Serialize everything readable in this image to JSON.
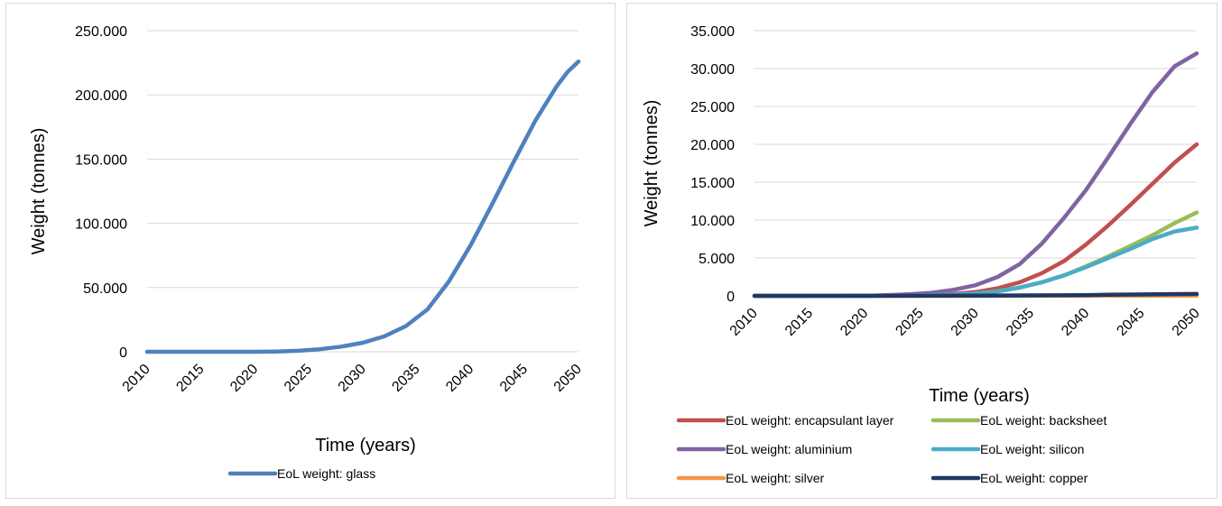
{
  "chart_data": [
    {
      "type": "line",
      "title": "",
      "xlabel": "Time (years)",
      "ylabel": "Weight (tonnes)",
      "ylim": [
        0,
        250000
      ],
      "xlim": [
        2010,
        2050
      ],
      "grid": "horizontal",
      "legend_position": "bottom",
      "y_ticks": [
        "0",
        "50.000",
        "100.000",
        "150.000",
        "200.000",
        "250.000"
      ],
      "x_ticks": [
        "2010",
        "2015",
        "2020",
        "2025",
        "2030",
        "2035",
        "2040",
        "2045",
        "2050"
      ],
      "series": [
        {
          "name": "EoL weight: glass",
          "color": "#4F81BD",
          "x": [
            2010,
            2015,
            2020,
            2022,
            2024,
            2026,
            2028,
            2030,
            2032,
            2034,
            2036,
            2038,
            2040,
            2042,
            2044,
            2046,
            2048,
            2049,
            2050
          ],
          "y": [
            0,
            0,
            0,
            200,
            800,
            2000,
            4000,
            7000,
            12000,
            20000,
            33000,
            55000,
            83000,
            115000,
            148000,
            180000,
            207000,
            218000,
            226000
          ]
        }
      ]
    },
    {
      "type": "line",
      "title": "",
      "xlabel": "Time (years)",
      "ylabel": "Weight (tonnes)",
      "ylim": [
        0,
        35000
      ],
      "xlim": [
        2010,
        2050
      ],
      "grid": "horizontal",
      "legend_position": "bottom",
      "y_ticks": [
        "0",
        "5.000",
        "10.000",
        "15.000",
        "20.000",
        "25.000",
        "30.000",
        "35.000"
      ],
      "x_ticks": [
        "2010",
        "2015",
        "2020",
        "2025",
        "2030",
        "2035",
        "2040",
        "2045",
        "2050"
      ],
      "series": [
        {
          "name": "EoL weight: encapsulant layer",
          "color": "#C0504D",
          "x": [
            2010,
            2020,
            2024,
            2028,
            2030,
            2032,
            2034,
            2036,
            2038,
            2040,
            2042,
            2044,
            2046,
            2048,
            2050
          ],
          "y": [
            0,
            0,
            80,
            250,
            500,
            1000,
            1800,
            3000,
            4600,
            6800,
            9300,
            12000,
            14800,
            17600,
            20000
          ]
        },
        {
          "name": "EoL weight: backsheet",
          "color": "#9BBB59",
          "x": [
            2010,
            2020,
            2024,
            2028,
            2030,
            2032,
            2034,
            2036,
            2038,
            2040,
            2042,
            2044,
            2046,
            2048,
            2050
          ],
          "y": [
            0,
            0,
            40,
            150,
            300,
            600,
            1100,
            1800,
            2700,
            3900,
            5200,
            6600,
            8000,
            9600,
            11000
          ]
        },
        {
          "name": "EoL weight: aluminium",
          "color": "#8064A2",
          "x": [
            2010,
            2020,
            2022,
            2024,
            2026,
            2028,
            2030,
            2032,
            2034,
            2036,
            2038,
            2040,
            2042,
            2044,
            2046,
            2048,
            2050
          ],
          "y": [
            0,
            0,
            100,
            200,
            400,
            800,
            1400,
            2500,
            4200,
            6900,
            10300,
            14000,
            18300,
            22700,
            26900,
            30300,
            32000
          ]
        },
        {
          "name": "EoL weight: silicon",
          "color": "#4BACC6",
          "x": [
            2010,
            2020,
            2024,
            2028,
            2030,
            2032,
            2034,
            2036,
            2038,
            2040,
            2042,
            2044,
            2046,
            2048,
            2050
          ],
          "y": [
            0,
            0,
            40,
            150,
            300,
            600,
            1100,
            1800,
            2700,
            3800,
            5000,
            6200,
            7500,
            8500,
            9000
          ]
        },
        {
          "name": "EoL weight: silver",
          "color": "#F79646",
          "x": [
            2010,
            2030,
            2040,
            2050
          ],
          "y": [
            0,
            5,
            20,
            40
          ]
        },
        {
          "name": "EoL weight: copper",
          "color": "#1F3864",
          "x": [
            2010,
            2030,
            2040,
            2042,
            2050
          ],
          "y": [
            0,
            20,
            80,
            150,
            250
          ]
        }
      ]
    }
  ]
}
